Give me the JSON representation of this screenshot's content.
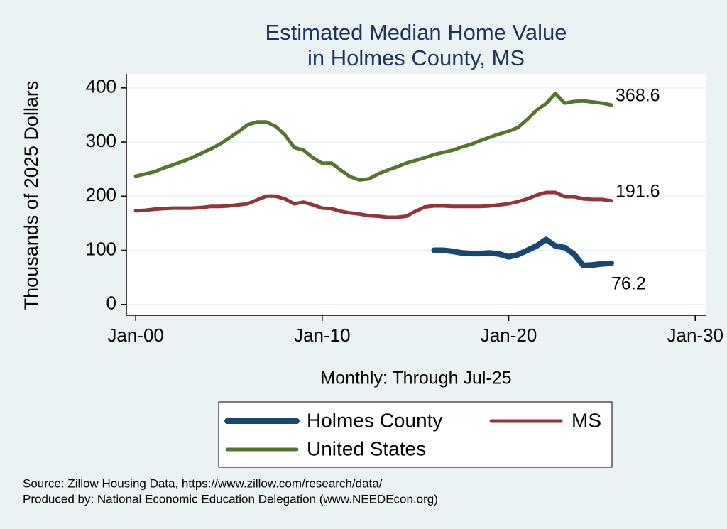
{
  "chart_data": {
    "type": "line",
    "title": [
      "Estimated Median Home Value",
      "in Holmes County, MS"
    ],
    "y_label": "Thousands of 2025 Dollars",
    "x_label": "Monthly: Through Jul-25",
    "source": [
      "Source: Zillow Housing Data, https://www.zillow.com/research/data/",
      "Produced by: National Economic Education Delegation (www.NEEDEcon.org)"
    ],
    "xlim": [
      1999.5,
      2030.6
    ],
    "xticks": [
      {
        "value": 2000,
        "label": "Jan-00"
      },
      {
        "value": 2010,
        "label": "Jan-10"
      },
      {
        "value": 2020,
        "label": "Jan-20"
      },
      {
        "value": 2030,
        "label": "Jan-30"
      }
    ],
    "ylim": [
      -20,
      426
    ],
    "yticks": [
      0,
      100,
      200,
      300,
      400
    ],
    "grid": true,
    "x": [
      2000,
      2000.5,
      2001,
      2001.5,
      2002,
      2002.5,
      2003,
      2003.5,
      2004,
      2004.5,
      2005,
      2005.5,
      2006,
      2006.5,
      2007,
      2007.5,
      2008,
      2008.5,
      2009,
      2009.5,
      2010,
      2010.5,
      2011,
      2011.5,
      2012,
      2012.5,
      2013,
      2013.5,
      2014,
      2014.5,
      2015,
      2015.5,
      2016,
      2016.5,
      2017,
      2017.5,
      2018,
      2018.5,
      2019,
      2019.5,
      2020,
      2020.5,
      2021,
      2021.5,
      2022,
      2022.5,
      2023,
      2023.5,
      2024,
      2024.5,
      2025,
      2025.5
    ],
    "series": [
      {
        "name": "Holmes County",
        "color": "#1a476f",
        "width": 8,
        "values": [
          null,
          null,
          null,
          null,
          null,
          null,
          null,
          null,
          null,
          null,
          null,
          null,
          null,
          null,
          null,
          null,
          null,
          null,
          null,
          null,
          null,
          null,
          null,
          null,
          null,
          null,
          null,
          null,
          null,
          null,
          null,
          null,
          100,
          100,
          98,
          95,
          94,
          94,
          95,
          93,
          88,
          92,
          100,
          108,
          120,
          108,
          105,
          93,
          72,
          73,
          75,
          76.2
        ]
      },
      {
        "name": "MS",
        "color": "#90353b",
        "width": 5,
        "values": [
          173,
          174,
          176,
          177,
          178,
          178,
          178,
          179,
          181,
          181,
          182,
          184,
          186,
          193,
          200,
          200,
          195,
          186,
          189,
          184,
          178,
          177,
          172,
          169,
          167,
          164,
          163,
          161,
          161,
          163,
          172,
          180,
          182,
          182,
          181,
          181,
          181,
          181,
          182,
          184,
          186,
          190,
          195,
          202,
          207,
          207,
          199,
          199,
          195,
          194,
          194,
          191.6
        ]
      },
      {
        "name": "United States",
        "color": "#55752f",
        "width": 5,
        "values": [
          237,
          241,
          245,
          252,
          258,
          264,
          271,
          279,
          287,
          296,
          307,
          319,
          332,
          337,
          337,
          329,
          313,
          290,
          285,
          271,
          261,
          261,
          248,
          236,
          230,
          232,
          241,
          248,
          254,
          261,
          266,
          271,
          277,
          281,
          285,
          291,
          296,
          303,
          309,
          315,
          320,
          327,
          342,
          359,
          371,
          390,
          372,
          375,
          376,
          374,
          372,
          368.6
        ]
      }
    ]
  }
}
